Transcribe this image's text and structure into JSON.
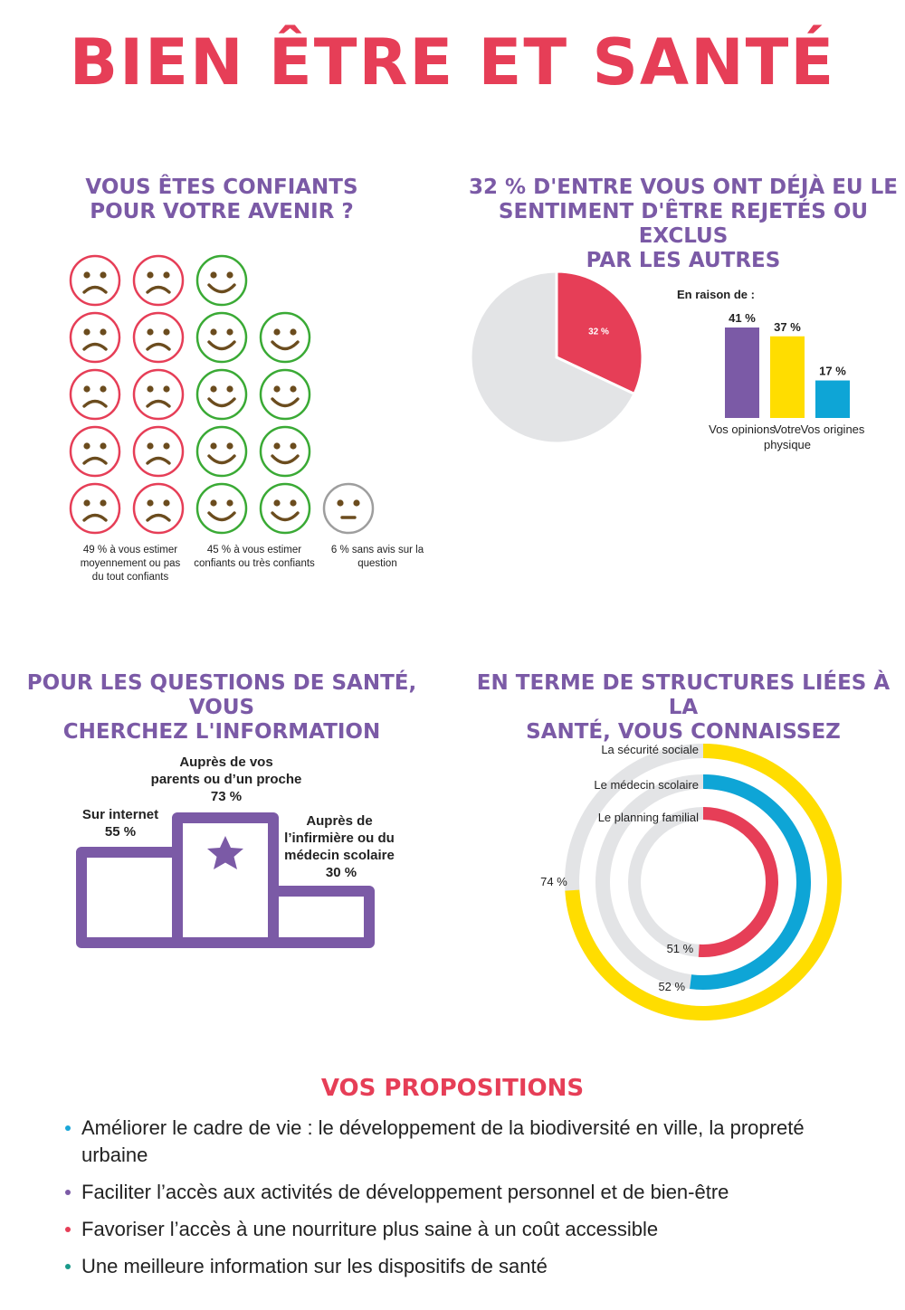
{
  "title": "BIEN ÊTRE ET SANTÉ",
  "colors": {
    "red": "#e63e57",
    "green": "#3aaa35",
    "gray": "#9e9e9e",
    "purple": "#7b5aa6",
    "yellow": "#ffdd00",
    "blue": "#0ea5d6",
    "face": "#6b4c1e",
    "track": "#e3e4e6"
  },
  "section_confiance": {
    "title_lines": [
      "VOUS ÊTES CONFIANTS",
      "POUR VOTRE AVENIR ?"
    ],
    "captions": [
      [
        "49 % à vous estimer",
        "moyennement ou pas",
        "du tout confiants"
      ],
      [
        "45 % à vous estimer",
        "confiants ou très confiants"
      ],
      [
        "6 % sans avis sur la",
        "question"
      ]
    ]
  },
  "section_rejet": {
    "title_lines": [
      "32 % D'ENTRE VOUS ONT DÉJÀ EU LE",
      "SENTIMENT D'ÊTRE REJETÉS OU EXCLUS",
      "PAR LES AUTRES"
    ],
    "bars_title": "En raison de :"
  },
  "section_info": {
    "title_lines": [
      "POUR LES QUESTIONS DE SANTÉ, VOUS",
      "CHERCHEZ L'INFORMATION"
    ],
    "labels": [
      [
        "Sur internet",
        "55 %"
      ],
      [
        "Auprès de vos",
        "parents ou d’un proche",
        "73 %"
      ],
      [
        "Auprès de",
        "l’infirmière ou du",
        "médecin scolaire",
        "30 %"
      ]
    ]
  },
  "section_structures": {
    "title_lines": [
      "EN TERME DE STRUCTURES LIÉES À LA",
      "SANTÉ, VOUS CONNAISSEZ"
    ]
  },
  "propositions": {
    "title": "VOS PROPOSITIONS",
    "items": [
      {
        "text": "Améliorer le cadre de vie : le développement de la biodiversité en ville, la propreté urbaine",
        "color": "#1aa6d8"
      },
      {
        "text": "Faciliter l’accès aux activités de développement personnel et de bien-être",
        "color": "#7b5aa6"
      },
      {
        "text": "Favoriser l’accès à une nourriture plus saine à un coût accessible",
        "color": "#e63e57"
      },
      {
        "text": "Une meilleure information sur les dispositifs de santé",
        "color": "#1a9a8a"
      }
    ]
  },
  "chart_data": [
    {
      "type": "pictogram",
      "series": [
        {
          "name": "49 % à vous estimer moyennement ou pas du tout confiants",
          "value": 49,
          "icon": "sad-face-icon",
          "columns": 2,
          "count": 10
        },
        {
          "name": "45 % à vous estimer confiants ou très confiants",
          "value": 45,
          "icon": "smile-face-icon",
          "columns": 2,
          "count": 9
        },
        {
          "name": "6 % sans avis sur la question",
          "value": 6,
          "icon": "neutral-face-icon",
          "columns": 1,
          "count": 1
        }
      ]
    },
    {
      "type": "pie",
      "slices": [
        {
          "label": "32 %",
          "value": 32,
          "color": "#e63e57"
        },
        {
          "label": "",
          "value": 68,
          "color": "#e3e4e6"
        }
      ]
    },
    {
      "type": "bar",
      "title": "En raison de :",
      "categories": [
        "Vos opinions",
        "Votre physique",
        "Vos origines"
      ],
      "category_lines": [
        [
          "Vos opinions"
        ],
        [
          "Votre",
          "physique"
        ],
        [
          "Vos origines"
        ]
      ],
      "values": [
        41,
        37,
        17
      ],
      "value_labels": [
        "41 %",
        "37 %",
        "17 %"
      ],
      "colors": [
        "#7b5aa6",
        "#ffdd00",
        "#0ea5d6"
      ]
    },
    {
      "type": "bar",
      "categories": [
        "Sur internet",
        "Auprès de vos parents ou d’un proche",
        "Auprès de l’infirmière ou du médecin scolaire"
      ],
      "values": [
        55,
        73,
        30
      ]
    },
    {
      "type": "radial-bar",
      "series": [
        {
          "name": "La sécurité sociale",
          "value": 74,
          "label": "74 %",
          "color": "#ffdd00"
        },
        {
          "name": "Le médecin scolaire",
          "value": 52,
          "label": "52 %",
          "color": "#0ea5d6"
        },
        {
          "name": "Le planning familial",
          "value": 51,
          "label": "51 %",
          "color": "#e63e57"
        }
      ]
    }
  ]
}
